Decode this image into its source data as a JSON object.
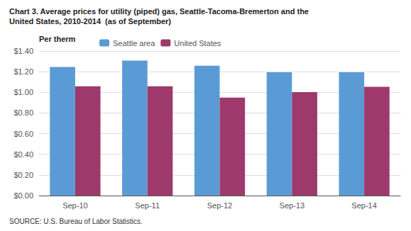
{
  "chart_data": {
    "type": "bar",
    "title": "Chart 3. Average prices for utility (piped) gas, Seattle-Tacoma-Bremerton and the\nUnited States, 2010-2014  (as of September)",
    "ylabel": "Per therm",
    "annotations": [
      "SOURCE: U.S. Bureau of Labor Statistics."
    ],
    "categories": [
      "Sep-10",
      "Sep-11",
      "Sep-12",
      "Sep-13",
      "Sep-14"
    ],
    "series": [
      {
        "name": "Seattle area",
        "color": "#5B9BD5",
        "values": [
          1.245,
          1.307,
          1.258,
          1.194,
          1.194
        ]
      },
      {
        "name": "United States",
        "color": "#9E3A6B",
        "values": [
          1.059,
          1.059,
          0.948,
          1.002,
          1.054
        ]
      }
    ],
    "ylim": [
      0,
      1.4
    ],
    "yticks": [
      {
        "value": 0,
        "label": "$0.00"
      },
      {
        "value": 0.2,
        "label": "$0.20"
      },
      {
        "value": 0.4,
        "label": "$0.40"
      },
      {
        "value": 0.6,
        "label": "$0.60"
      },
      {
        "value": 0.8,
        "label": "$0.80"
      },
      {
        "value": 1.0,
        "label": "$1.00"
      },
      {
        "value": 1.2,
        "label": "$1.20"
      },
      {
        "value": 1.4,
        "label": "$1.40"
      }
    ],
    "grid": true,
    "legend": "upper left"
  }
}
